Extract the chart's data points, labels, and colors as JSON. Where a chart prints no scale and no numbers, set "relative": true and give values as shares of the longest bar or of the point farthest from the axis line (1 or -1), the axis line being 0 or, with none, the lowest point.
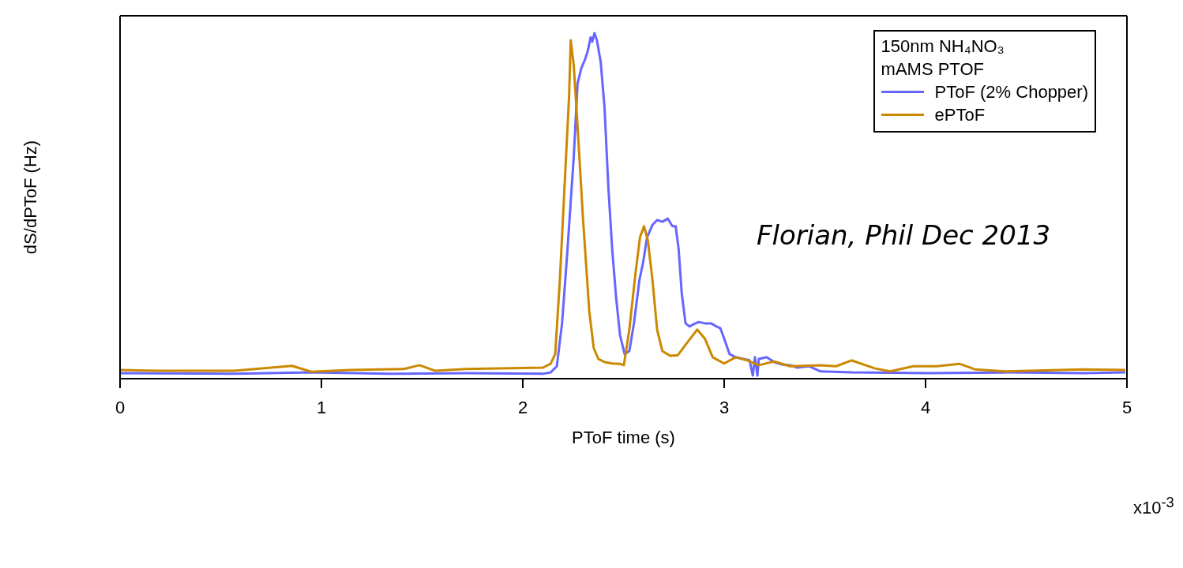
{
  "chart_data": {
    "type": "line",
    "relative": true,
    "xlabel": "PToF time (s)",
    "ylabel": "dS/dPToF (Hz)",
    "legend_title": "150nm NH₄NO₃\nmAMS PTOF",
    "legend": "top right",
    "annotations": [
      "Florian, Phil Dec 2013",
      "x10$^{-3}$"
    ],
    "xlim": [
      0,
      5
    ],
    "xticks": [
      0,
      1,
      2,
      3,
      4,
      5
    ],
    "line_style": "solid",
    "marker": "none",
    "grid": false,
    "series": [
      {
        "name": "PToF (2% Chopper)",
        "color": "#6666ff",
        "x": [
          0,
          0.567,
          0.95,
          1.333,
          1.716,
          2.1,
          2.138,
          2.169,
          2.195,
          2.222,
          2.253,
          2.272,
          2.291,
          2.31,
          2.322,
          2.337,
          2.345,
          2.356,
          2.368,
          2.387,
          2.406,
          2.425,
          2.444,
          2.464,
          2.483,
          2.506,
          2.529,
          2.552,
          2.579,
          2.598,
          2.617,
          2.644,
          2.667,
          2.693,
          2.72,
          2.743,
          2.759,
          2.774,
          2.789,
          2.808,
          2.828,
          2.847,
          2.874,
          2.904,
          2.935,
          2.962,
          2.981,
          3.0,
          3.027,
          3.057,
          3.096,
          3.126,
          3.142,
          3.153,
          3.165,
          3.172,
          3.211,
          3.249,
          3.287,
          3.326,
          3.364,
          3.421,
          3.479,
          3.632,
          4.015,
          4.398,
          4.782,
          4.992
        ],
        "values": [
          0.016,
          0.014,
          0.018,
          0.014,
          0.016,
          0.014,
          0.018,
          0.036,
          0.16,
          0.374,
          0.641,
          0.854,
          0.899,
          0.925,
          0.947,
          0.988,
          0.975,
          1,
          0.979,
          0.916,
          0.783,
          0.552,
          0.374,
          0.231,
          0.125,
          0.071,
          0.08,
          0.16,
          0.285,
          0.338,
          0.409,
          0.445,
          0.459,
          0.454,
          0.463,
          0.441,
          0.441,
          0.374,
          0.249,
          0.16,
          0.151,
          0.157,
          0.164,
          0.16,
          0.16,
          0.151,
          0.146,
          0.116,
          0.071,
          0.062,
          0.057,
          0.053,
          0.009,
          0.062,
          0.009,
          0.057,
          0.062,
          0.048,
          0.041,
          0.039,
          0.032,
          0.036,
          0.021,
          0.018,
          0.016,
          0.018,
          0.016,
          0.018
        ]
      },
      {
        "name": "ePToF",
        "color": "#cc8800",
        "x": [
          0,
          0.184,
          0.567,
          0.854,
          0.95,
          1.142,
          1.41,
          1.487,
          1.563,
          1.716,
          2.1,
          2.138,
          2.161,
          2.184,
          2.207,
          2.23,
          2.238,
          2.253,
          2.272,
          2.299,
          2.33,
          2.352,
          2.375,
          2.406,
          2.444,
          2.483,
          2.502,
          2.529,
          2.559,
          2.582,
          2.602,
          2.621,
          2.644,
          2.667,
          2.693,
          2.732,
          2.77,
          2.808,
          2.866,
          2.904,
          2.943,
          3.0,
          3.057,
          3.115,
          3.172,
          3.249,
          3.326,
          3.479,
          3.556,
          3.632,
          3.747,
          3.824,
          3.939,
          4.054,
          4.169,
          4.245,
          4.398,
          4.782,
          4.992
        ],
        "values": [
          0.025,
          0.023,
          0.023,
          0.037,
          0.02,
          0.025,
          0.028,
          0.039,
          0.023,
          0.028,
          0.032,
          0.043,
          0.071,
          0.285,
          0.552,
          0.819,
          0.979,
          0.907,
          0.73,
          0.463,
          0.196,
          0.089,
          0.057,
          0.048,
          0.044,
          0.043,
          0.039,
          0.142,
          0.302,
          0.409,
          0.441,
          0.4,
          0.285,
          0.142,
          0.08,
          0.066,
          0.068,
          0.098,
          0.142,
          0.116,
          0.062,
          0.044,
          0.062,
          0.053,
          0.039,
          0.05,
          0.036,
          0.039,
          0.036,
          0.053,
          0.03,
          0.021,
          0.036,
          0.036,
          0.043,
          0.027,
          0.021,
          0.027,
          0.025
        ]
      }
    ]
  }
}
